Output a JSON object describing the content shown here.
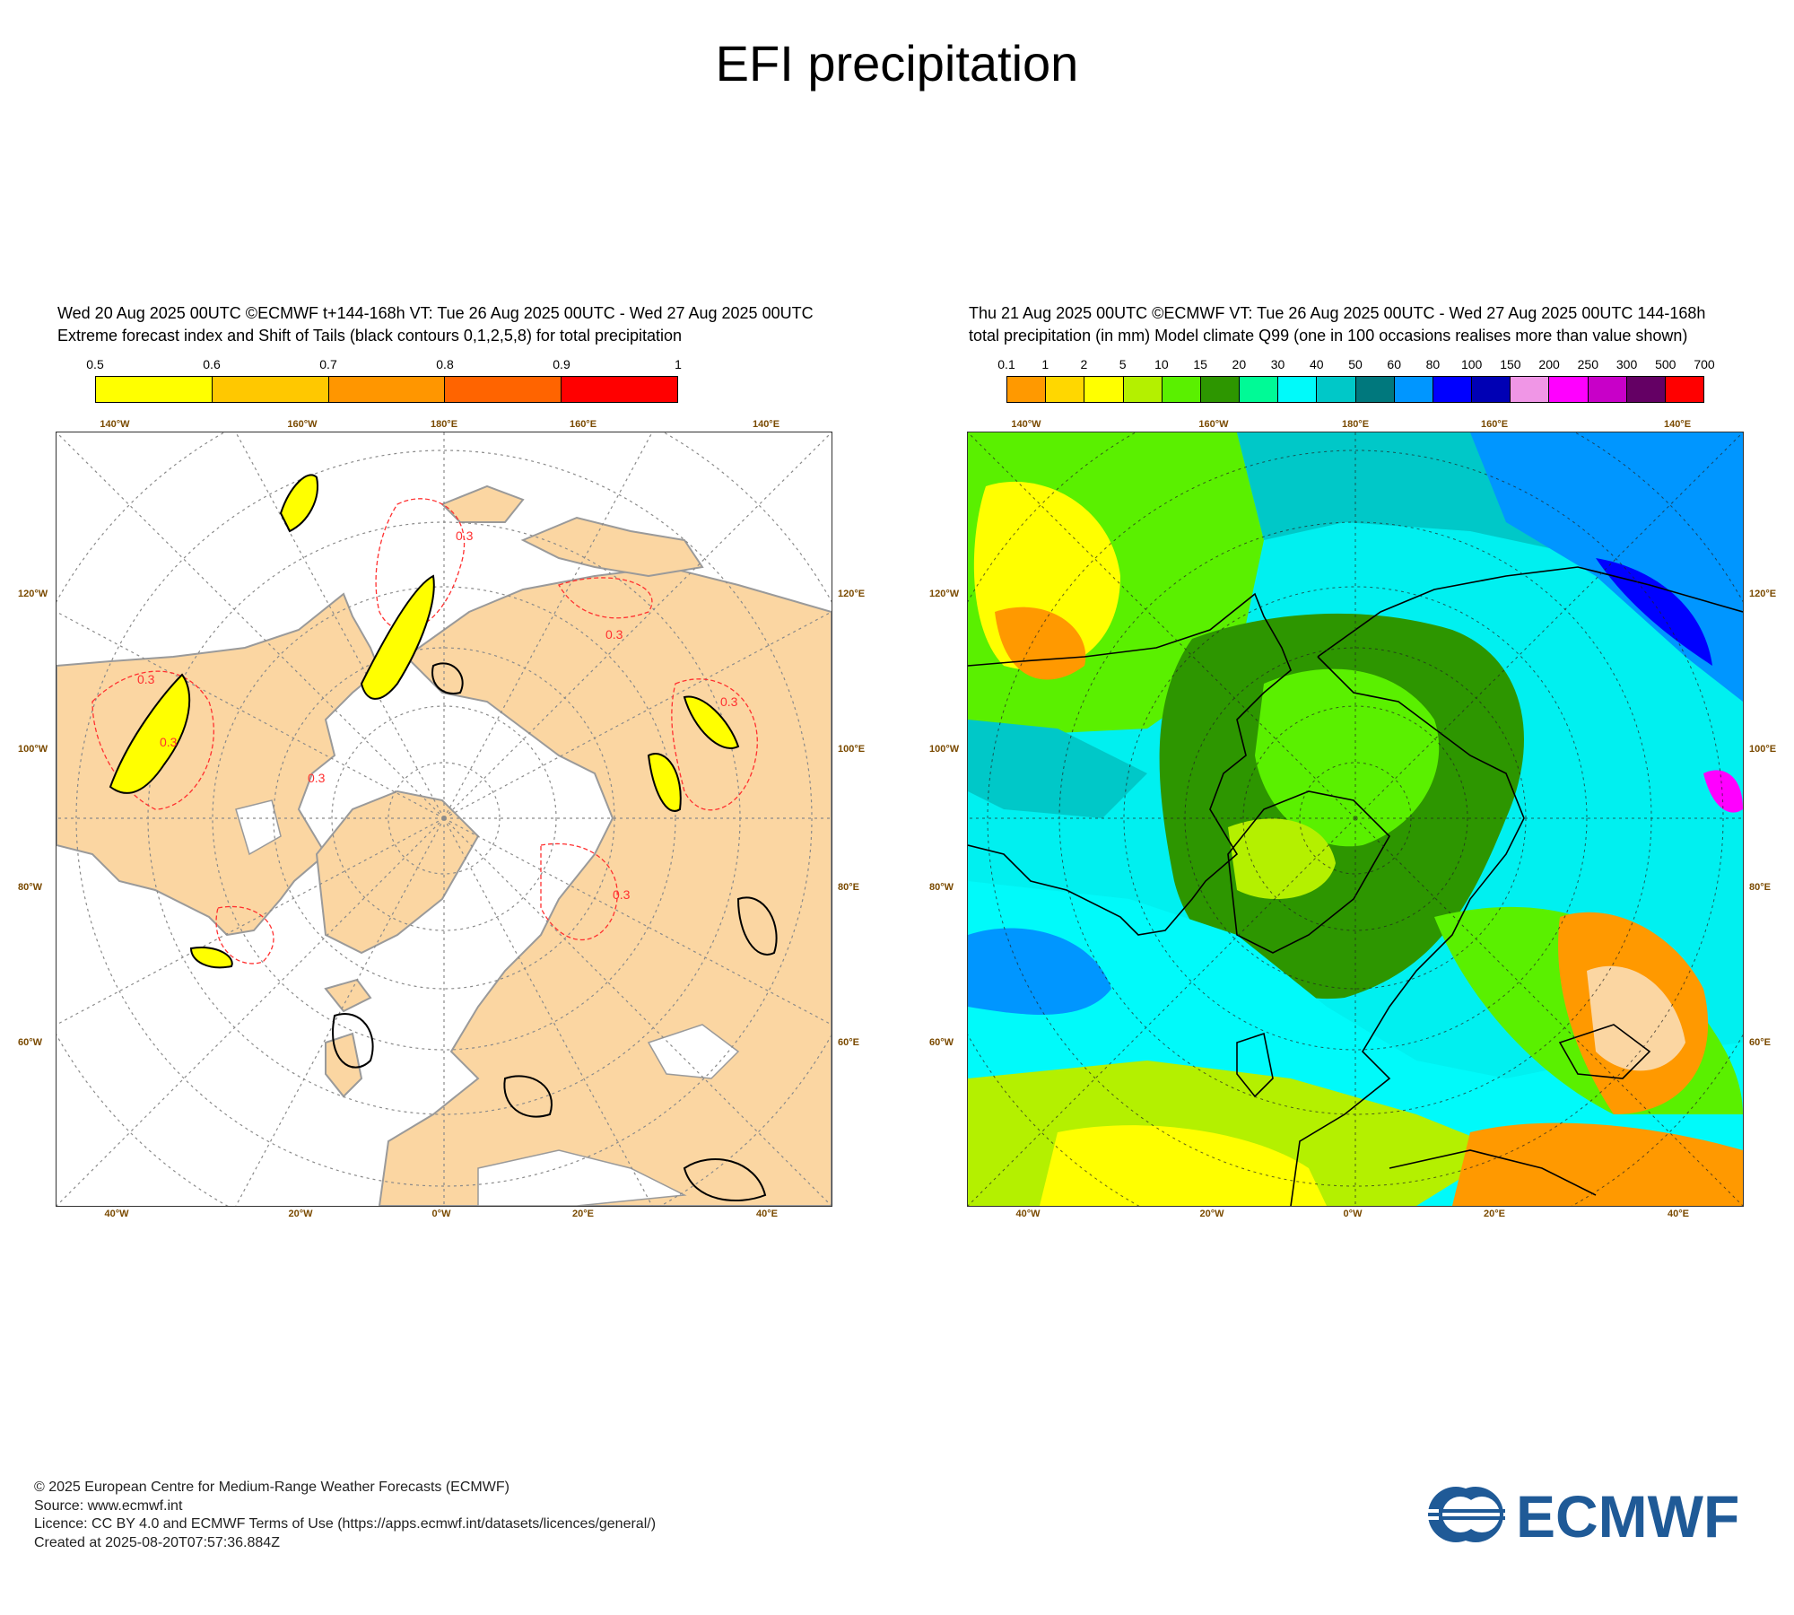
{
  "page_title": "EFI precipitation",
  "left_panel": {
    "header_line1": "Wed 20 Aug 2025 00UTC ©ECMWF t+144-168h  VT: Tue 26 Aug 2025 00UTC - Wed 27 Aug 2025 00UTC",
    "header_line2": "Extreme forecast index and Shift of Tails (black contours 0,1,2,5,8) for total precipitation",
    "legend_ticks": [
      "0.5",
      "0.6",
      "0.7",
      "0.8",
      "0.9",
      "1"
    ],
    "legend_colors": [
      "#ffff00",
      "#ffc800",
      "#ff9600",
      "#ff6400",
      "#ff0000"
    ],
    "land_color": "#fbd6a2",
    "sot_label": "0.3"
  },
  "right_panel": {
    "header_line1": "Thu 21 Aug 2025 00UTC ©ECMWF VT: Tue 26 Aug 2025 00UTC - Wed 27 Aug 2025 00UTC    144-168h",
    "header_line2": "total precipitation (in mm)  Model climate Q99 (one in 100 occasions realises more than value shown)",
    "legend_ticks": [
      "0.1",
      "1",
      "2",
      "5",
      "10",
      "15",
      "20",
      "30",
      "40",
      "50",
      "60",
      "80",
      "100",
      "150",
      "200",
      "250",
      "300",
      "500",
      "700"
    ],
    "legend_colors": [
      "#ff9900",
      "#ffd700",
      "#ffff00",
      "#b4f000",
      "#5af000",
      "#2d9600",
      "#00fa96",
      "#00fafa",
      "#00c8c8",
      "#00787d",
      "#0096ff",
      "#0000ff",
      "#0000b4",
      "#f096e6",
      "#ff00ff",
      "#c800c8",
      "#640064",
      "#ff0000"
    ]
  },
  "map_labels": {
    "top_lon": [
      "140°W",
      "160°W",
      "180°E",
      "160°E",
      "140°E"
    ],
    "bottom_lon": [
      "40°W",
      "20°W",
      "0°W",
      "20°E",
      "40°E"
    ],
    "left_lat": [
      "120°W",
      "100°W",
      "80°W",
      "60°W"
    ],
    "right_lat": [
      "120°E",
      "100°E",
      "80°E",
      "60°E"
    ]
  },
  "footer": {
    "copyright": "© 2025 European Centre for Medium-Range Weather Forecasts (ECMWF)",
    "source": "Source: www.ecmwf.int",
    "licence": "Licence: CC BY 4.0 and ECMWF Terms of Use (https://apps.ecmwf.int/datasets/licences/general/)",
    "created": "Created at 2025-08-20T07:57:36.884Z"
  },
  "logo_text": "ECMWF",
  "logo_color": "#1f5a97"
}
